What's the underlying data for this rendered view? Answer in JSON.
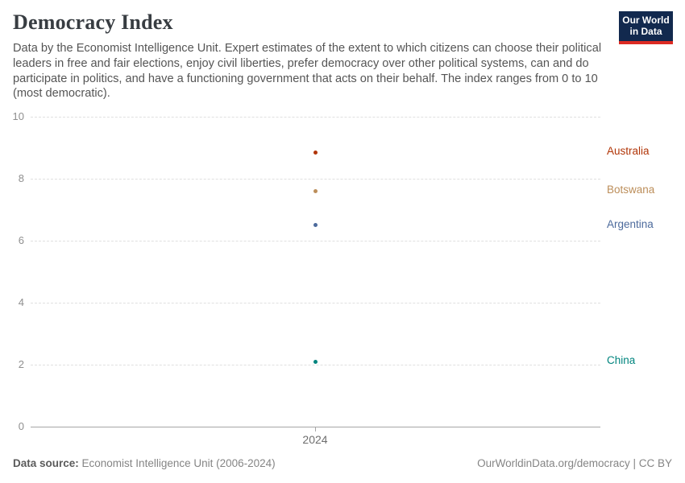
{
  "header": {
    "title": "Democracy Index",
    "subtitle": "Data by the Economist Intelligence Unit. Expert estimates of the extent to which citizens can choose their political leaders in free and fair elections, enjoy civil liberties, prefer democracy over other political systems, can and do participate in politics, and have a functioning government that acts on their behalf. The index ranges from 0 to 10 (most democratic).",
    "logo": {
      "line1": "Our World",
      "line2": "in Data",
      "background_color": "#12294e",
      "accent_color": "#dc2b23"
    }
  },
  "chart_data": {
    "type": "scatter",
    "title": "Democracy Index",
    "x": [
      2024
    ],
    "xtick_labels": [
      "2024"
    ],
    "xlabel": "",
    "ylabel": "",
    "ylim": [
      0,
      10
    ],
    "yticks": [
      0,
      2,
      4,
      6,
      8,
      10
    ],
    "grid": "horizontal dashed, solid baseline at 0",
    "legend_position": "entity labels right of plot",
    "series": [
      {
        "name": "Australia",
        "values": [
          8.85
        ],
        "color": "#b13507"
      },
      {
        "name": "Botswana",
        "values": [
          7.6
        ],
        "color": "#bc8e5a"
      },
      {
        "name": "Argentina",
        "values": [
          6.5
        ],
        "color": "#4c6a9c"
      },
      {
        "name": "China",
        "values": [
          2.1
        ],
        "color": "#00847e"
      }
    ]
  },
  "footer": {
    "source_label": "Data source:",
    "source_text": " Economist Intelligence Unit (2006-2024)",
    "right_text": "OurWorldinData.org/democracy | CC BY"
  }
}
